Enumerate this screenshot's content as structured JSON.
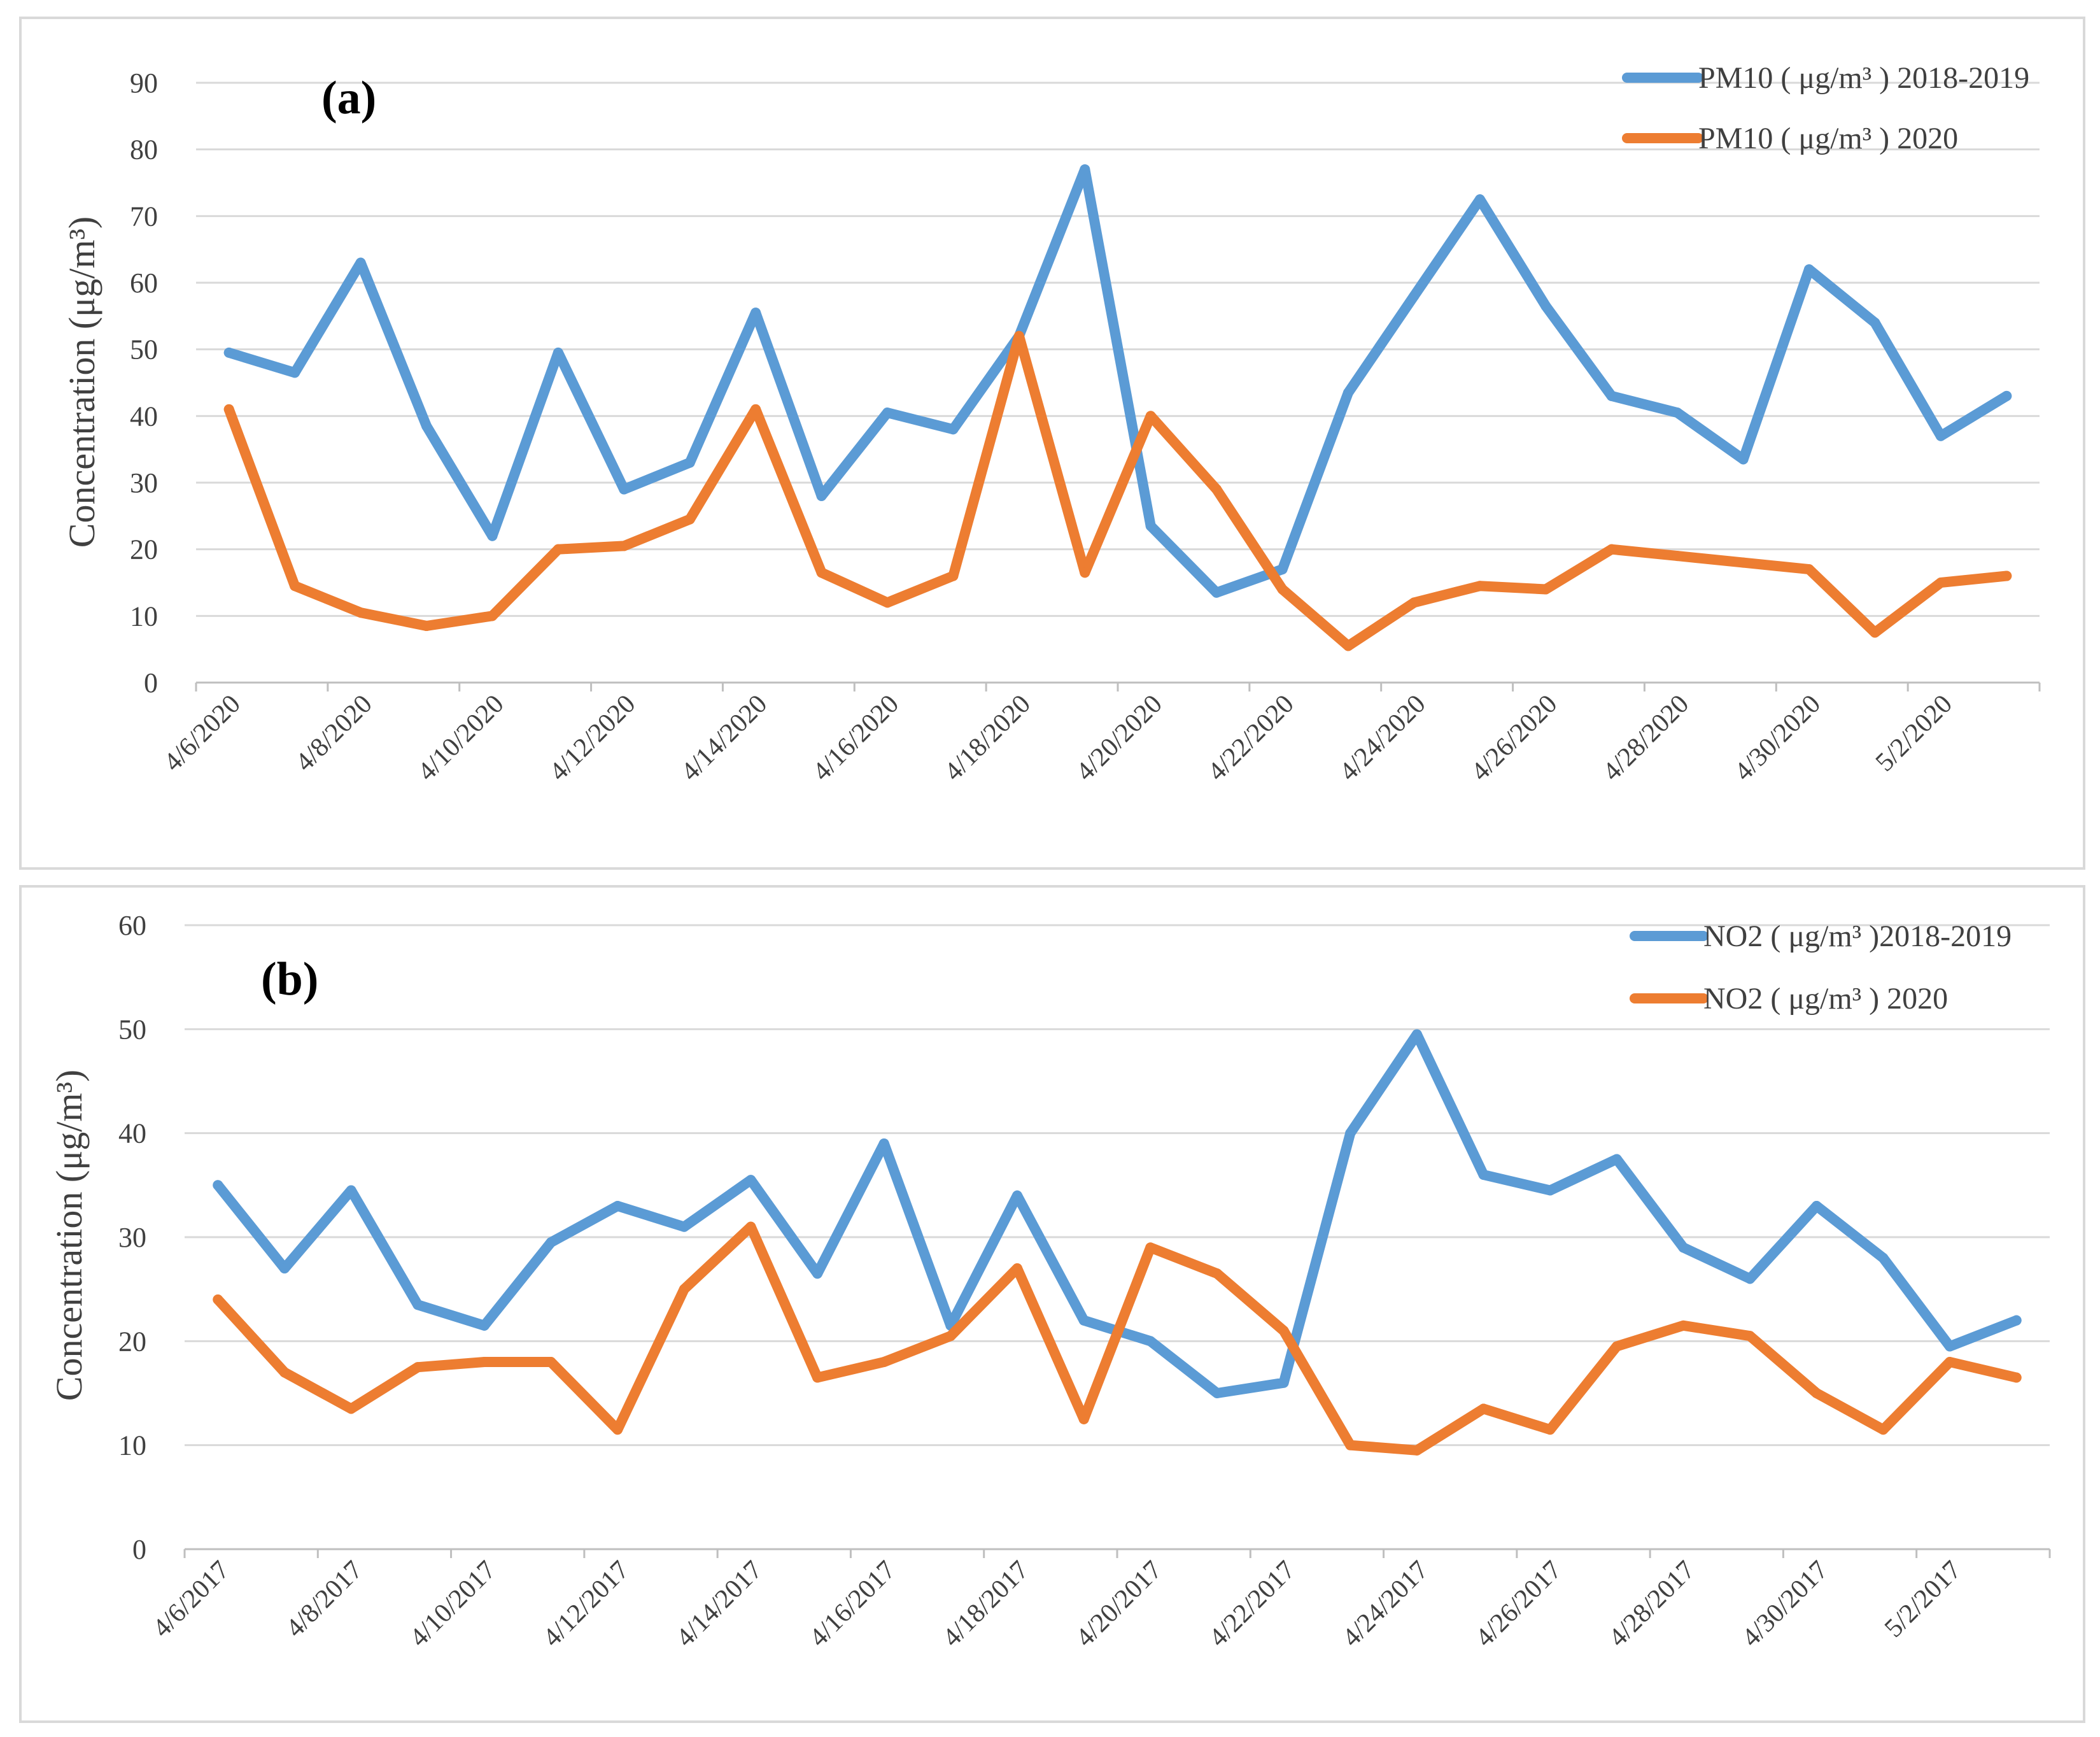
{
  "chart_data": [
    {
      "type": "line",
      "panel_label": "(a)",
      "ylabel": "Concentration (μg/m³)",
      "ylim": [
        0,
        90
      ],
      "yticks": [
        "0",
        "10",
        "20",
        "30",
        "40",
        "50",
        "60",
        "70",
        "80",
        "90"
      ],
      "x_tick_labels": [
        "4/6/2020",
        "4/8/2020",
        "4/10/2020",
        "4/12/2020",
        "4/14/2020",
        "4/16/2020",
        "4/18/2020",
        "4/20/2020",
        "4/22/2020",
        "4/24/2020",
        "4/26/2020",
        "4/28/2020",
        "4/30/2020",
        "5/2/2020"
      ],
      "legend_position": "top-right",
      "series": [
        {
          "name": "PM10 ( μg/m³ ) 2018-2019",
          "color": "#5B9BD5",
          "values": [
            49.5,
            46.5,
            63,
            38.5,
            22,
            49.5,
            29,
            33,
            55.5,
            28,
            40.5,
            38,
            52,
            77,
            23.5,
            13.5,
            17,
            43.5,
            58,
            72.5,
            56.5,
            43,
            40.5,
            33.5,
            62,
            54,
            37,
            43
          ]
        },
        {
          "name": "PM10 ( μg/m³ ) 2020",
          "color": "#ED7D31",
          "values": [
            41,
            14.5,
            10.5,
            8.5,
            10,
            20,
            20.5,
            24.5,
            41,
            16.5,
            12,
            16,
            52,
            16.5,
            40,
            29,
            14,
            5.5,
            12,
            14.5,
            14,
            20,
            19,
            18,
            17,
            7.5,
            15,
            16
          ]
        }
      ]
    },
    {
      "type": "line",
      "panel_label": "(b)",
      "ylabel": "Concentration (μg/m³)",
      "ylim": [
        0,
        60
      ],
      "yticks": [
        "0",
        "10",
        "20",
        "30",
        "40",
        "50",
        "60"
      ],
      "x_tick_labels": [
        "4/6/2017",
        "4/8/2017",
        "4/10/2017",
        "4/12/2017",
        "4/14/2017",
        "4/16/2017",
        "4/18/2017",
        "4/20/2017",
        "4/22/2017",
        "4/24/2017",
        "4/26/2017",
        "4/28/2017",
        "4/30/2017",
        "5/2/2017"
      ],
      "legend_position": "top-right",
      "series": [
        {
          "name": "NO2 ( μg/m³ )2018-2019",
          "color": "#5B9BD5",
          "values": [
            35,
            27,
            34.5,
            23.5,
            21.5,
            29.5,
            33,
            31,
            35.5,
            26.5,
            39,
            21.5,
            34,
            22,
            20,
            15,
            16,
            40,
            49.5,
            36,
            34.5,
            37.5,
            29,
            26,
            33,
            28,
            19.5,
            22
          ]
        },
        {
          "name": "NO2 ( μg/m³ ) 2020",
          "color": "#ED7D31",
          "values": [
            24,
            17,
            13.5,
            17.5,
            18,
            18,
            11.5,
            25,
            31,
            16.5,
            18,
            20.5,
            27,
            12.5,
            29,
            26.5,
            21,
            10,
            9.5,
            13.5,
            11.5,
            19.5,
            21.5,
            20.5,
            15,
            11.5,
            18,
            16.5
          ]
        }
      ]
    }
  ]
}
